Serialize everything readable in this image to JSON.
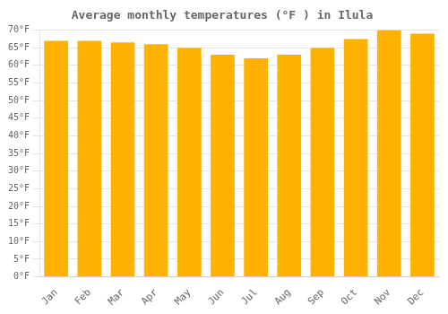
{
  "chart_data": {
    "type": "bar",
    "title": "Average monthly temperatures (°F ) in Ilula",
    "categories": [
      "Jan",
      "Feb",
      "Mar",
      "Apr",
      "May",
      "Jun",
      "Jul",
      "Aug",
      "Sep",
      "Oct",
      "Nov",
      "Dec"
    ],
    "values": [
      67,
      67,
      66.5,
      66,
      65,
      63,
      62,
      63,
      65,
      67.5,
      70,
      69
    ],
    "color": "#FFB300",
    "ylim": [
      0,
      70
    ],
    "yticks": [
      {
        "value": 0,
        "label": "0°F"
      },
      {
        "value": 5,
        "label": "5°F"
      },
      {
        "value": 10,
        "label": "10°F"
      },
      {
        "value": 15,
        "label": "15°F"
      },
      {
        "value": 20,
        "label": "20°F"
      },
      {
        "value": 25,
        "label": "25°F"
      },
      {
        "value": 30,
        "label": "30°F"
      },
      {
        "value": 35,
        "label": "35°F"
      },
      {
        "value": 40,
        "label": "40°F"
      },
      {
        "value": 45,
        "label": "45°F"
      },
      {
        "value": 50,
        "label": "50°F"
      },
      {
        "value": 55,
        "label": "55°F"
      },
      {
        "value": 60,
        "label": "60°F"
      },
      {
        "value": 65,
        "label": "65°F"
      },
      {
        "value": 70,
        "label": "70°F"
      }
    ],
    "grid": true
  }
}
